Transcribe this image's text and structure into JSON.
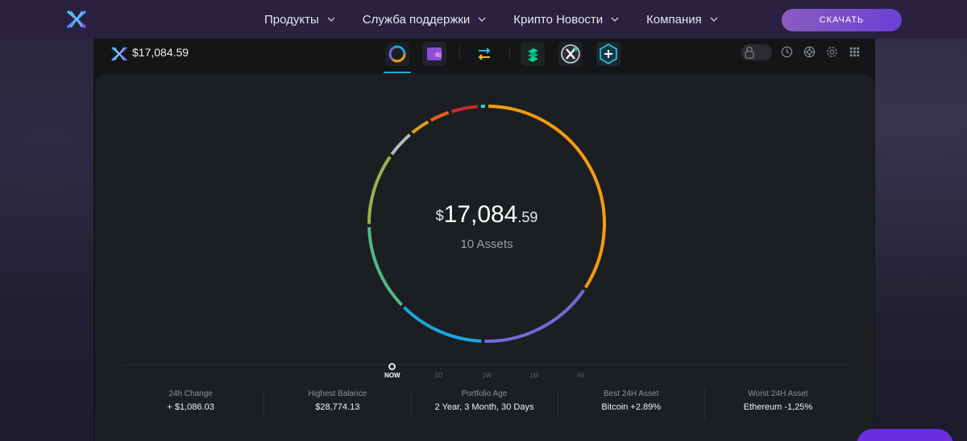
{
  "nav": {
    "items": [
      {
        "label": "Продукты"
      },
      {
        "label": "Служба поддержки"
      },
      {
        "label": "Крипто Новости"
      },
      {
        "label": "Компания"
      }
    ],
    "download_label": "СКАЧАТЬ"
  },
  "app": {
    "header_balance": "$17,084.59",
    "tabs": [
      {
        "icon": "portfolio-icon",
        "active": true
      },
      {
        "icon": "wallet-icon"
      },
      {
        "icon": "exchange-icon"
      },
      {
        "icon": "compound-icon"
      },
      {
        "icon": "xchange-icon"
      },
      {
        "icon": "add-app-icon"
      }
    ],
    "header_icons": [
      "lock-icon",
      "history-icon",
      "support-icon",
      "settings-icon",
      "apps-grid-icon"
    ]
  },
  "portfolio": {
    "currency_symbol": "$",
    "total_integer": "17,084",
    "total_decimal": ".59",
    "assets_label": "10 Assets"
  },
  "chart_data": {
    "type": "pie",
    "values": [
      34,
      16,
      12,
      12,
      10,
      4,
      3,
      3,
      4,
      1
    ],
    "colors": [
      "#f39c12",
      "#6f6bd8",
      "#1aa6e0",
      "#4fb88a",
      "#9bb04a",
      "#b9b9b9",
      "#e0a020",
      "#e35d1e",
      "#d0292e",
      "#3ec7cf"
    ]
  },
  "timeline": {
    "options": [
      {
        "label": "NOW",
        "active": true
      },
      {
        "label": "1D"
      },
      {
        "label": "1W"
      },
      {
        "label": "1M"
      },
      {
        "label": "All"
      }
    ]
  },
  "stats": [
    {
      "label": "24h Change",
      "value": "+ $1,086.03"
    },
    {
      "label": "Highest Balance",
      "value": "$28,774.13"
    },
    {
      "label": "Portfolio Age",
      "value": "2 Year, 3 Month, 30 Days"
    },
    {
      "label": "Best 24H Asset",
      "value": "Bitcoin +2.89%"
    },
    {
      "label": "Worst 24H Asset",
      "value": "Ethereum -1,25%"
    }
  ],
  "colors": {
    "accent": "#1da9d9",
    "nav_bg": "#29213f",
    "app_bg": "#131517",
    "panel_bg": "#1c1f21",
    "button_start": "#8a5cc0",
    "button_end": "#6b3fd6"
  }
}
